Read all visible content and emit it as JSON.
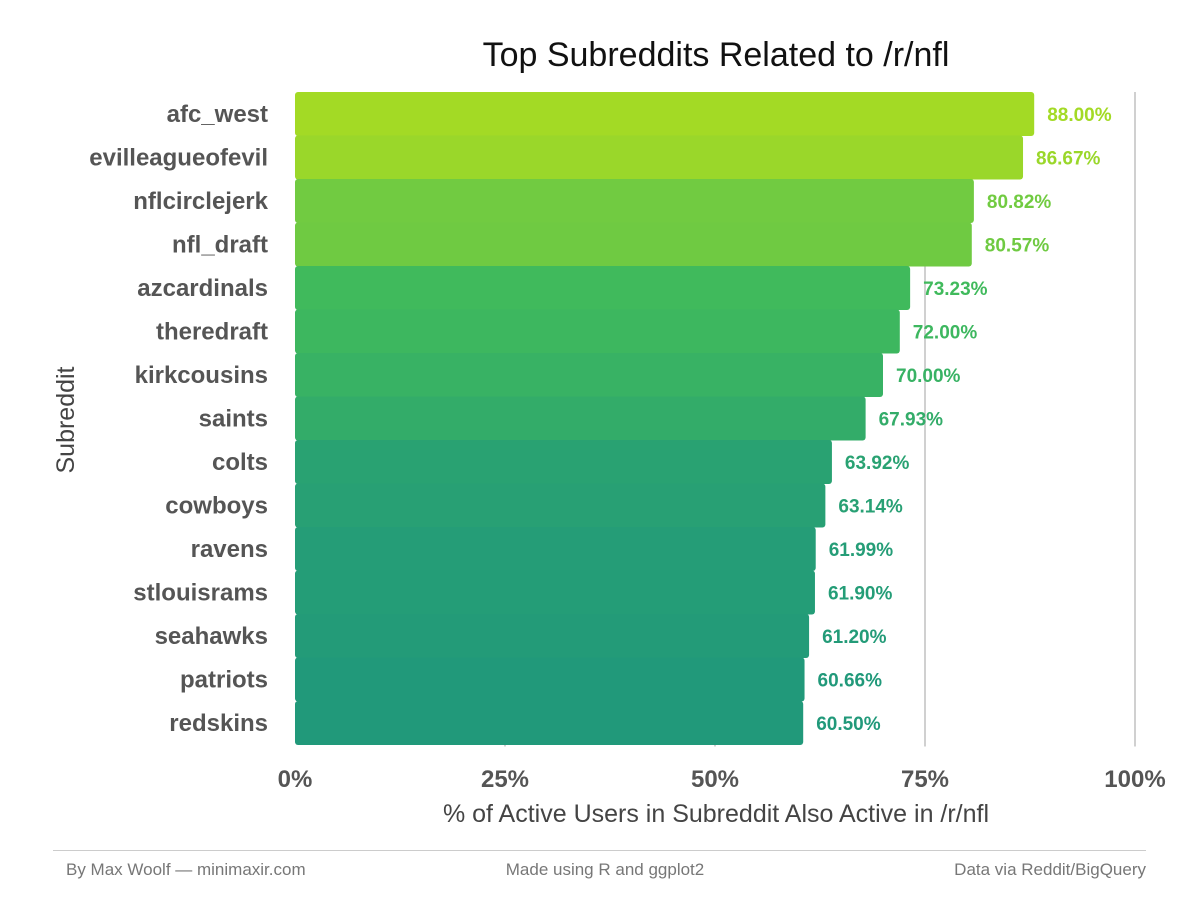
{
  "chart_data": {
    "type": "bar",
    "orientation": "horizontal",
    "title": "Top Subreddits Related to /r/nfl",
    "xlabel": "% of Active Users in Subreddit Also Active in /r/nfl",
    "ylabel": "Subreddit",
    "categories": [
      "afc_west",
      "evilleagueofevil",
      "nflcirclejerk",
      "nfl_draft",
      "azcardinals",
      "theredraft",
      "kirkcousins",
      "saints",
      "colts",
      "cowboys",
      "ravens",
      "stlouisrams",
      "seahawks",
      "patriots",
      "redskins"
    ],
    "values": [
      88.0,
      86.67,
      80.82,
      80.57,
      73.23,
      72.0,
      70.0,
      67.93,
      63.92,
      63.14,
      61.99,
      61.9,
      61.2,
      60.66,
      60.5
    ],
    "value_labels": [
      "88.00%",
      "86.67%",
      "80.82%",
      "80.57%",
      "73.23%",
      "72.00%",
      "70.00%",
      "67.93%",
      "63.92%",
      "63.14%",
      "61.99%",
      "61.90%",
      "61.20%",
      "60.66%",
      "60.50%"
    ],
    "xlim": [
      0,
      100
    ],
    "x_ticks": [
      0,
      25,
      50,
      75,
      100
    ],
    "x_tick_labels": [
      "0%",
      "25%",
      "50%",
      "75%",
      "100%"
    ],
    "grid": "vertical major gridlines",
    "legend": "none",
    "color_scale": {
      "low": "#21997a",
      "mid": "#43bd5a",
      "high": "#a3da25"
    }
  },
  "footer": {
    "left": "By Max Woolf — minimaxir.com",
    "center": "Made using R and ggplot2",
    "right": "Data via Reddit/BigQuery"
  }
}
